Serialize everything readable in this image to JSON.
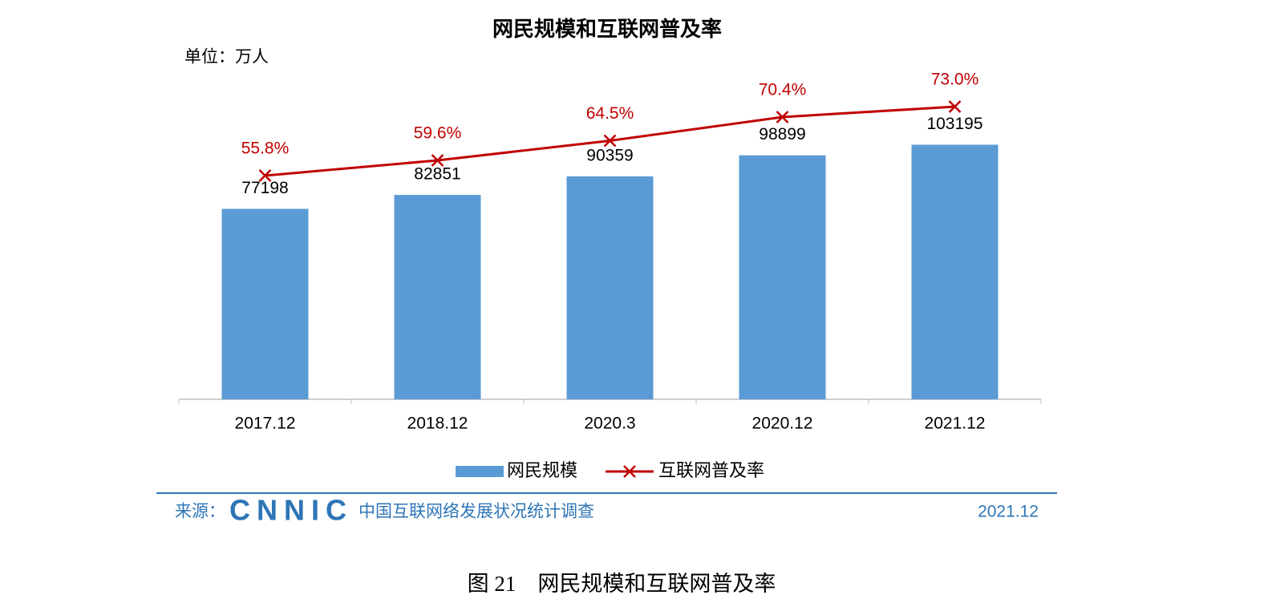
{
  "chart_data": {
    "type": "bar-line",
    "title": "网民规模和互联网普及率",
    "unit_label": "单位：万人",
    "categories": [
      "2017.12",
      "2018.12",
      "2020.3",
      "2020.12",
      "2021.12"
    ],
    "series": [
      {
        "name": "网民规模",
        "type": "bar",
        "color": "#5b9bd5",
        "values": [
          77198,
          82851,
          90359,
          98899,
          103195
        ]
      },
      {
        "name": "互联网普及率",
        "type": "line",
        "axis": "y2",
        "color": "#c00000",
        "values": [
          55.8,
          59.6,
          64.5,
          70.4,
          73.0
        ],
        "value_labels": [
          "55.8%",
          "59.6%",
          "64.5%",
          "70.4%",
          "73.0%"
        ]
      }
    ],
    "ylim": [
      0,
      130000
    ],
    "y2lim": [
      0,
      80
    ],
    "legend": "bottom"
  },
  "source": {
    "label": "来源：",
    "logo": "CNNIC",
    "name": "中国互联网络发展状况统计调查",
    "date": "2021.12"
  },
  "caption": "图 21　网民规模和互联网普及率"
}
